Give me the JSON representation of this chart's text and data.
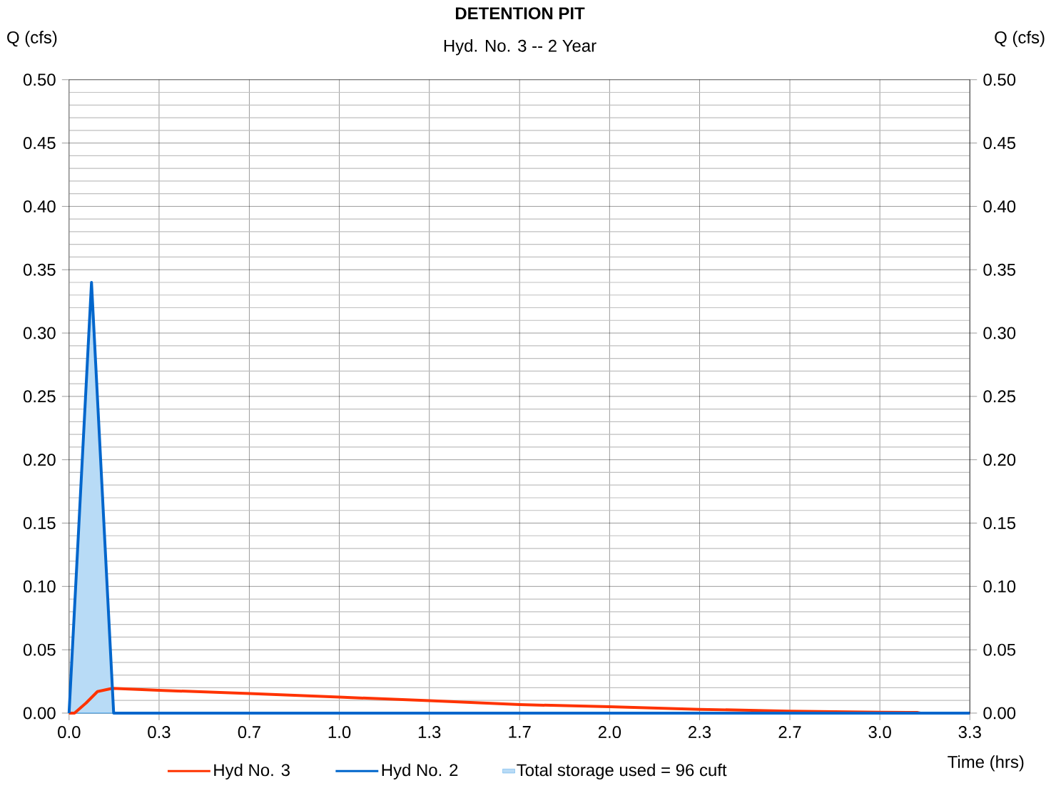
{
  "chart_data": {
    "type": "line",
    "title": "DETENTION PIT",
    "subtitle": "Hyd. No. 3 -- 2 Year",
    "xlabel": "Time (hrs)",
    "annotations": [
      "Q (cfs)",
      "Q (cfs)"
    ],
    "xlim": [
      0,
      3.333
    ],
    "xticks": [
      {
        "value": 0,
        "label": "0.0"
      },
      {
        "value": 0.333,
        "label": "0.3"
      },
      {
        "value": 0.667,
        "label": "0.7"
      },
      {
        "value": 1,
        "label": "1.0"
      },
      {
        "value": 1.333,
        "label": "1.3"
      },
      {
        "value": 1.667,
        "label": "1.7"
      },
      {
        "value": 2,
        "label": "2.0"
      },
      {
        "value": 2.333,
        "label": "2.3"
      },
      {
        "value": 2.667,
        "label": "2.7"
      },
      {
        "value": 3,
        "label": "3.0"
      },
      {
        "value": 3.333,
        "label": "3.3"
      }
    ],
    "ylim": [
      0,
      0.5
    ],
    "yticks": [
      {
        "value": 0,
        "label": "0.00"
      },
      {
        "value": 0.05,
        "label": "0.05"
      },
      {
        "value": 0.1,
        "label": "0.10"
      },
      {
        "value": 0.15,
        "label": "0.15"
      },
      {
        "value": 0.2,
        "label": "0.20"
      },
      {
        "value": 0.25,
        "label": "0.25"
      },
      {
        "value": 0.3,
        "label": "0.30"
      },
      {
        "value": 0.35,
        "label": "0.35"
      },
      {
        "value": 0.4,
        "label": "0.40"
      },
      {
        "value": 0.45,
        "label": "0.45"
      },
      {
        "value": 0.5,
        "label": "0.50"
      }
    ],
    "y2lim": [
      0,
      0.5
    ],
    "y2ticks": [
      {
        "value": 0,
        "label": "0.00"
      },
      {
        "value": 0.05,
        "label": "0.05"
      },
      {
        "value": 0.1,
        "label": "0.10"
      },
      {
        "value": 0.15,
        "label": "0.15"
      },
      {
        "value": 0.2,
        "label": "0.20"
      },
      {
        "value": 0.25,
        "label": "0.25"
      },
      {
        "value": 0.3,
        "label": "0.30"
      },
      {
        "value": 0.35,
        "label": "0.35"
      },
      {
        "value": 0.4,
        "label": "0.40"
      },
      {
        "value": 0.45,
        "label": "0.45"
      },
      {
        "value": 0.5,
        "label": "0.50"
      }
    ],
    "grid": true,
    "legend": "bottom",
    "marker": "none",
    "line_style": "solid",
    "series": [
      {
        "name": "Hyd No. 3",
        "color": "#ff3300",
        "x": [
          0,
          0.02,
          0.063,
          0.105,
          0.16,
          0.333,
          0.667,
          1,
          1.333,
          1.667,
          2,
          2.333,
          2.667,
          3,
          3.14,
          3.15,
          3.333
        ],
        "values": [
          0,
          0,
          0.008,
          0.017,
          0.0195,
          0.018,
          0.0155,
          0.0126,
          0.0098,
          0.0067,
          0.005,
          0.003,
          0.0016,
          0.0007,
          0.0005,
          0,
          0
        ]
      },
      {
        "name": "Hyd No. 2",
        "color": "#0066cc",
        "x": [
          0,
          0.083,
          0.165,
          3.333
        ],
        "values": [
          0,
          0.34,
          0,
          0
        ]
      },
      {
        "name": "Total storage used = 96 cuft",
        "type": "area",
        "color": "#3399e6",
        "x": [
          0,
          0.083,
          0.165
        ],
        "values": [
          0,
          0.34,
          0
        ]
      }
    ]
  }
}
